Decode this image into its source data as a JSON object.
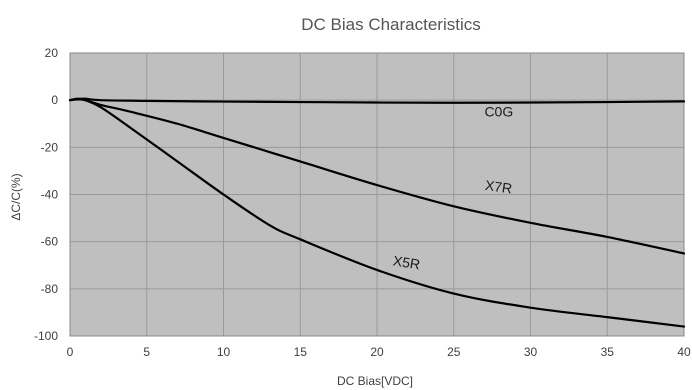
{
  "chart_data": {
    "type": "line",
    "title": "DC  Bias  Characteristics",
    "xlabel": "DC Bias[VDC]",
    "ylabel": "ΔC/C(%)",
    "xlim": [
      0,
      40
    ],
    "ylim": [
      -100,
      20
    ],
    "x_ticks": [
      0,
      5,
      10,
      15,
      20,
      25,
      30,
      35,
      40
    ],
    "y_ticks": [
      20,
      0,
      -20,
      -40,
      -60,
      -80,
      -100
    ],
    "grid": true,
    "plot_background": "#bfbfbf",
    "line_color": "#000000",
    "series": [
      {
        "name": "C0G",
        "label_at": [
          27,
          -7
        ],
        "points": [
          [
            0,
            0
          ],
          [
            0.5,
            0.5
          ],
          [
            1,
            0.6
          ],
          [
            2,
            0
          ],
          [
            5,
            -0.3
          ],
          [
            10,
            -0.6
          ],
          [
            15,
            -0.8
          ],
          [
            20,
            -1
          ],
          [
            25,
            -1.1
          ],
          [
            30,
            -1
          ],
          [
            35,
            -0.8
          ],
          [
            40,
            -0.5
          ]
        ]
      },
      {
        "name": "X7R",
        "label_at": [
          27,
          -38
        ],
        "points": [
          [
            0,
            0
          ],
          [
            0.5,
            0.3
          ],
          [
            1,
            0
          ],
          [
            2,
            -2
          ],
          [
            4,
            -5
          ],
          [
            7,
            -10
          ],
          [
            10,
            -16
          ],
          [
            15,
            -26
          ],
          [
            20,
            -36
          ],
          [
            25,
            -45
          ],
          [
            30,
            -52
          ],
          [
            35,
            -58
          ],
          [
            40,
            -65
          ]
        ]
      },
      {
        "name": "X5R",
        "label_at": [
          21,
          -70
        ],
        "points": [
          [
            0,
            0
          ],
          [
            0.5,
            0.6
          ],
          [
            1,
            0
          ],
          [
            2,
            -3
          ],
          [
            4,
            -12
          ],
          [
            7,
            -26
          ],
          [
            10,
            -40
          ],
          [
            13,
            -53
          ],
          [
            15,
            -59
          ],
          [
            20,
            -72
          ],
          [
            25,
            -82
          ],
          [
            30,
            -88
          ],
          [
            35,
            -92
          ],
          [
            40,
            -96
          ]
        ]
      }
    ]
  }
}
